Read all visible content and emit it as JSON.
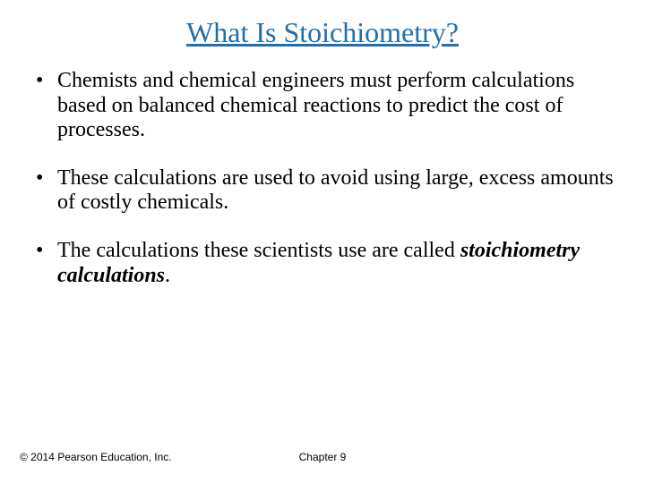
{
  "colors": {
    "title": "#1f6fb0",
    "body": "#000000",
    "footer": "#000000",
    "background": "#ffffff"
  },
  "title": "What Is Stoichiometry?",
  "bullets": [
    {
      "prefix": "Chemists and chemical engineers must perform calculations based on balanced chemical reactions to predict the cost of processes.",
      "em": "",
      "suffix": ""
    },
    {
      "prefix": "These calculations are used to avoid using large, excess amounts of costly chemicals.",
      "em": "",
      "suffix": ""
    },
    {
      "prefix": "The calculations these scientists use are called ",
      "em": "stoichiometry calculations",
      "suffix": "."
    }
  ],
  "footer": {
    "copyright": "© 2014 Pearson Education, Inc.",
    "chapter": "Chapter 9"
  }
}
